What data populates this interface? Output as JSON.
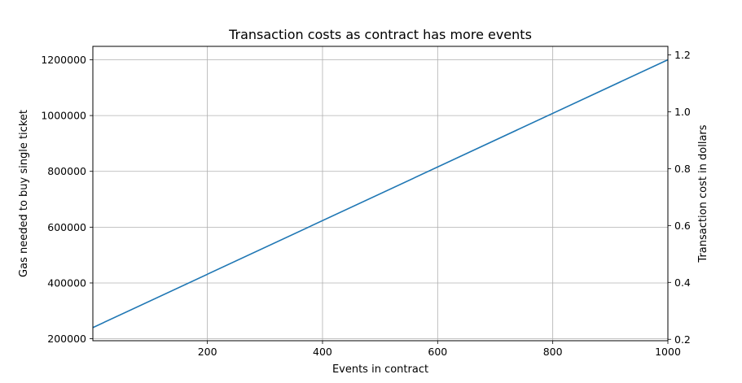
{
  "chart_data": {
    "type": "line",
    "title": "Transaction costs as contract has more events",
    "xlabel": "Events in contract",
    "ylabel": "Gas needed to buy single ticket",
    "y2label": "Transaction cost in dollars",
    "xlim": [
      1,
      1000
    ],
    "ylim": [
      193000,
      1248000
    ],
    "y2lim": [
      0.195,
      1.23
    ],
    "x_ticks": [
      200,
      400,
      600,
      800,
      1000
    ],
    "y_ticks": [
      200000,
      400000,
      600000,
      800000,
      1000000,
      1200000
    ],
    "y2_ticks": [
      0.2,
      0.4,
      0.6,
      0.8,
      1.0,
      1.2
    ],
    "y2_tick_labels": [
      "0.2",
      "0.4",
      "0.6",
      "0.8",
      "1.0",
      "1.2"
    ],
    "grid": true,
    "series": [
      {
        "color": "#1f77b4",
        "x": [
          1,
          1000
        ],
        "y": [
          240000,
          1200000
        ]
      }
    ]
  }
}
